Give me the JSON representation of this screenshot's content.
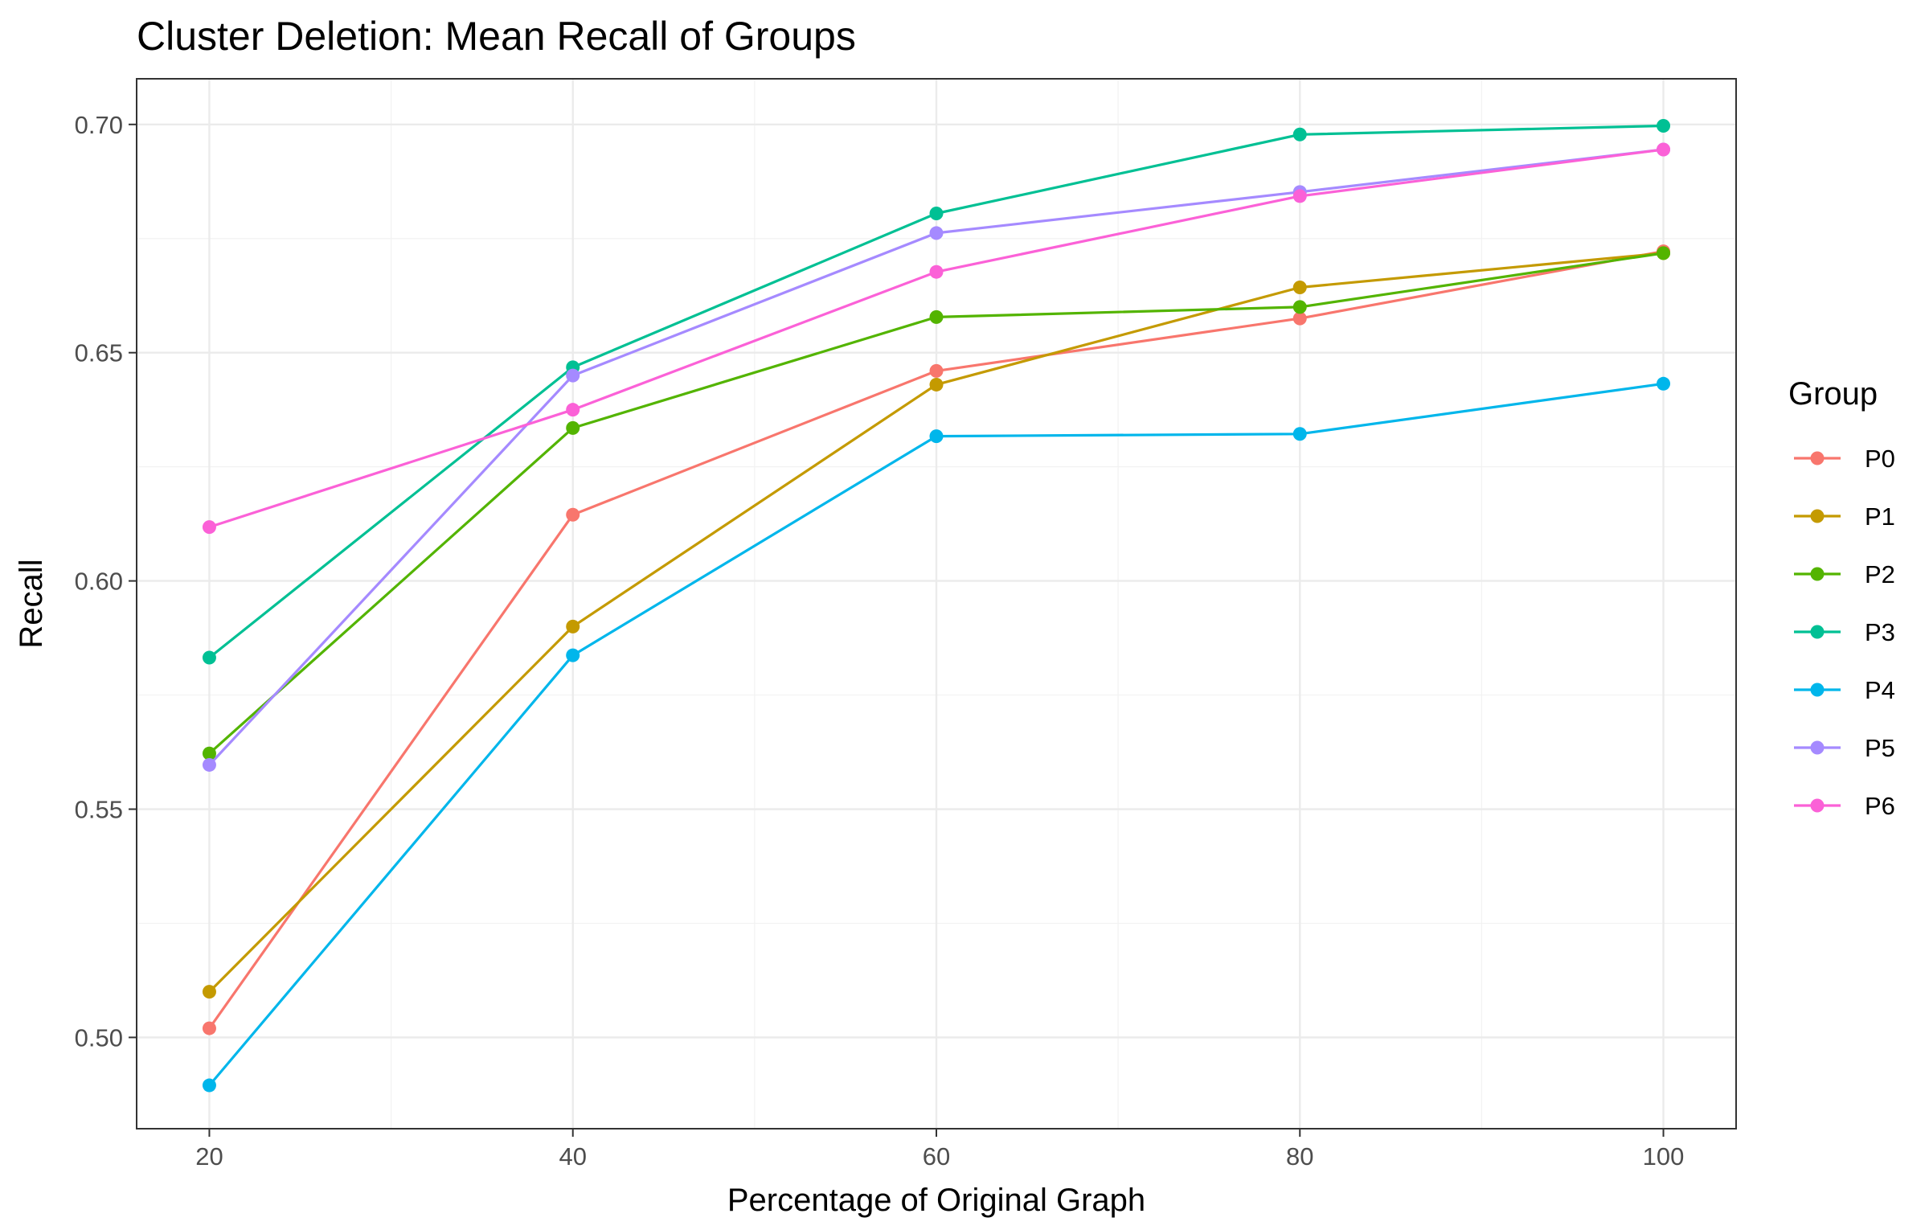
{
  "chart_data": {
    "type": "line",
    "title": "Cluster Deletion: Mean Recall of Groups",
    "xlabel": "Percentage of Original Graph",
    "ylabel": "Recall",
    "x": [
      20,
      40,
      60,
      80,
      100
    ],
    "xlim": [
      16,
      104
    ],
    "ylim": [
      0.48,
      0.71
    ],
    "x_ticks": [
      20,
      40,
      60,
      80,
      100
    ],
    "y_ticks": [
      0.5,
      0.55,
      0.6,
      0.65,
      0.7
    ],
    "x_tick_labels": [
      "20",
      "40",
      "60",
      "80",
      "100"
    ],
    "y_tick_labels": [
      "0.50",
      "0.55",
      "0.60",
      "0.65",
      "0.70"
    ],
    "grid": true,
    "legend": {
      "title": "Group",
      "position": "right"
    },
    "series": [
      {
        "name": "P0",
        "color": "#F8766D",
        "values": [
          0.502,
          0.6145,
          0.646,
          0.6575,
          0.6722
        ]
      },
      {
        "name": "P1",
        "color": "#C49A00",
        "values": [
          0.51,
          0.59,
          0.643,
          0.6643,
          0.6718
        ]
      },
      {
        "name": "P2",
        "color": "#53B400",
        "values": [
          0.5622,
          0.6335,
          0.6578,
          0.66,
          0.6718
        ]
      },
      {
        "name": "P3",
        "color": "#00C094",
        "values": [
          0.5832,
          0.6468,
          0.6805,
          0.6978,
          0.6997
        ]
      },
      {
        "name": "P4",
        "color": "#00B6EB",
        "values": [
          0.4895,
          0.5837,
          0.6317,
          0.6322,
          0.6432
        ]
      },
      {
        "name": "P5",
        "color": "#A58AFF",
        "values": [
          0.5597,
          0.645,
          0.6762,
          0.6852,
          0.6945
        ]
      },
      {
        "name": "P6",
        "color": "#FB61D7",
        "values": [
          0.6118,
          0.6375,
          0.6677,
          0.6843,
          0.6945
        ]
      }
    ]
  }
}
